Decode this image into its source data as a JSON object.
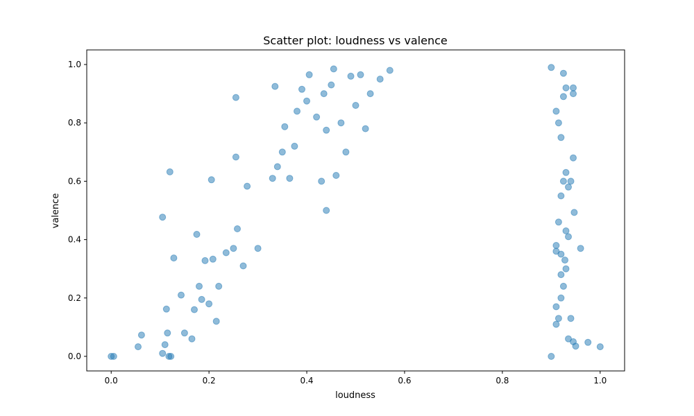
{
  "chart_data": {
    "type": "scatter",
    "title": "Scatter plot: loudness vs valence",
    "xlabel": "loudness",
    "ylabel": "valence",
    "xlim": [
      -0.05,
      1.05
    ],
    "ylim": [
      -0.05,
      1.05
    ],
    "xticks": [
      "0.0",
      "0.2",
      "0.4",
      "0.6",
      "0.8",
      "1.0"
    ],
    "yticks": [
      "0.0",
      "0.2",
      "0.4",
      "0.6",
      "0.8",
      "1.0"
    ],
    "grid": false,
    "legend": "none",
    "color": "#1f77b4",
    "alpha": 0.5,
    "series": [
      {
        "points": [
          [
            0.0,
            0.0
          ],
          [
            0.005,
            0.0
          ],
          [
            0.055,
            0.033
          ],
          [
            0.062,
            0.073
          ],
          [
            0.105,
            0.477
          ],
          [
            0.12,
            0.632
          ],
          [
            0.113,
            0.162
          ],
          [
            0.128,
            0.337
          ],
          [
            0.105,
            0.01
          ],
          [
            0.11,
            0.04
          ],
          [
            0.118,
            0.0
          ],
          [
            0.122,
            0.0
          ],
          [
            0.115,
            0.08
          ],
          [
            0.143,
            0.21
          ],
          [
            0.15,
            0.08
          ],
          [
            0.165,
            0.06
          ],
          [
            0.17,
            0.16
          ],
          [
            0.175,
            0.418
          ],
          [
            0.18,
            0.24
          ],
          [
            0.185,
            0.195
          ],
          [
            0.192,
            0.328
          ],
          [
            0.2,
            0.18
          ],
          [
            0.205,
            0.605
          ],
          [
            0.208,
            0.333
          ],
          [
            0.215,
            0.12
          ],
          [
            0.22,
            0.24
          ],
          [
            0.235,
            0.355
          ],
          [
            0.25,
            0.37
          ],
          [
            0.255,
            0.887
          ],
          [
            0.255,
            0.683
          ],
          [
            0.258,
            0.437
          ],
          [
            0.27,
            0.31
          ],
          [
            0.278,
            0.583
          ],
          [
            0.3,
            0.37
          ],
          [
            0.335,
            0.925
          ],
          [
            0.33,
            0.61
          ],
          [
            0.34,
            0.65
          ],
          [
            0.35,
            0.7
          ],
          [
            0.355,
            0.787
          ],
          [
            0.365,
            0.61
          ],
          [
            0.375,
            0.72
          ],
          [
            0.38,
            0.84
          ],
          [
            0.39,
            0.915
          ],
          [
            0.4,
            0.875
          ],
          [
            0.405,
            0.965
          ],
          [
            0.42,
            0.82
          ],
          [
            0.435,
            0.9
          ],
          [
            0.45,
            0.93
          ],
          [
            0.455,
            0.985
          ],
          [
            0.47,
            0.8
          ],
          [
            0.49,
            0.96
          ],
          [
            0.5,
            0.86
          ],
          [
            0.51,
            0.965
          ],
          [
            0.44,
            0.775
          ],
          [
            0.43,
            0.6
          ],
          [
            0.44,
            0.5
          ],
          [
            0.46,
            0.62
          ],
          [
            0.48,
            0.7
          ],
          [
            0.52,
            0.78
          ],
          [
            0.53,
            0.9
          ],
          [
            0.55,
            0.95
          ],
          [
            0.57,
            0.98
          ],
          [
            0.9,
            0.0
          ],
          [
            0.91,
            0.11
          ],
          [
            0.915,
            0.13
          ],
          [
            0.92,
            0.2
          ],
          [
            0.925,
            0.24
          ],
          [
            0.93,
            0.3
          ],
          [
            0.935,
            0.06
          ],
          [
            0.94,
            0.13
          ],
          [
            0.945,
            0.05
          ],
          [
            0.95,
            0.035
          ],
          [
            0.96,
            0.37
          ],
          [
            0.975,
            0.048
          ],
          [
            1.0,
            0.033
          ],
          [
            0.91,
            0.36
          ],
          [
            0.915,
            0.46
          ],
          [
            0.92,
            0.55
          ],
          [
            0.925,
            0.6
          ],
          [
            0.93,
            0.63
          ],
          [
            0.935,
            0.58
          ],
          [
            0.94,
            0.6
          ],
          [
            0.945,
            0.68
          ],
          [
            0.947,
            0.493
          ],
          [
            0.92,
            0.75
          ],
          [
            0.915,
            0.8
          ],
          [
            0.91,
            0.84
          ],
          [
            0.925,
            0.89
          ],
          [
            0.93,
            0.92
          ],
          [
            0.945,
            0.9
          ],
          [
            0.945,
            0.92
          ],
          [
            0.925,
            0.97
          ],
          [
            0.9,
            0.99
          ],
          [
            0.91,
            0.38
          ],
          [
            0.93,
            0.43
          ],
          [
            0.935,
            0.41
          ],
          [
            0.92,
            0.35
          ],
          [
            0.91,
            0.17
          ],
          [
            0.92,
            0.28
          ],
          [
            0.928,
            0.33
          ]
        ]
      }
    ]
  }
}
